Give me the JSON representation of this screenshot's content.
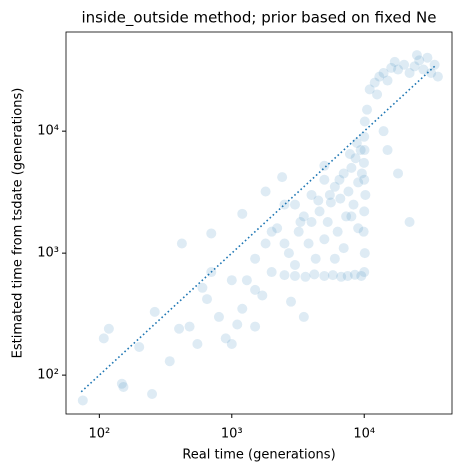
{
  "chart_data": {
    "type": "scatter",
    "title": "inside_outside method; prior based on fixed Ne",
    "x_label": "Real time (generations)",
    "y_label": "Estimated time from tsdate (generations)",
    "log_x": true,
    "log_y": true,
    "color": "#1f77b4",
    "opacity": 0.15,
    "xlim": [
      56,
      46000
    ],
    "ylim": [
      48,
      65000
    ],
    "xticks": [
      {
        "value": 100,
        "label": "10²"
      },
      {
        "value": 1000,
        "label": "10³"
      },
      {
        "value": 10000,
        "label": "10⁴"
      }
    ],
    "yticks": [
      {
        "value": 100,
        "label": "10²"
      },
      {
        "value": 1000,
        "label": "10³"
      },
      {
        "value": 10000,
        "label": "10⁴"
      }
    ],
    "reference_line": {
      "x": [
        73,
        35000
      ],
      "y": [
        73,
        35000
      ]
    },
    "x": [
      75,
      118,
      108,
      148,
      152,
      250,
      262,
      200,
      340,
      400,
      480,
      600,
      700,
      420,
      550,
      800,
      900,
      650,
      1000,
      1100,
      1200,
      1300,
      1500,
      1700,
      1800,
      2000,
      2200,
      2500,
      2700,
      3000,
      3200,
      3500,
      3800,
      4000,
      4300,
      4600,
      5000,
      5300,
      5600,
      6000,
      6300,
      6600,
      7000,
      7300,
      7600,
      8000,
      8300,
      8600,
      9000,
      9400,
      10000,
      10100,
      9900,
      10000,
      10200,
      10000,
      9950,
      10050,
      10000,
      10100,
      2500,
      3000,
      3600,
      4200,
      5000,
      5800,
      6700,
      7500,
      8500,
      9500,
      10500,
      11000,
      12000,
      13000,
      14000,
      15000,
      16000,
      18000,
      20000,
      22000,
      24000,
      26000,
      28000,
      30000,
      32000,
      34000,
      36000,
      12500,
      17000,
      25000,
      22000,
      18000,
      15000,
      14000,
      2400,
      3500,
      1500,
      5000,
      1800,
      1200,
      2000,
      2500,
      3000,
      4000,
      5000,
      6000,
      7000,
      8000,
      9000,
      1000,
      1500,
      2800,
      3300,
      4500,
      5500,
      6500,
      7800,
      8800,
      9600,
      700
    ],
    "y": [
      62,
      240,
      200,
      85,
      80,
      70,
      330,
      170,
      130,
      240,
      250,
      520,
      1450,
      1200,
      180,
      300,
      200,
      420,
      180,
      260,
      350,
      600,
      900,
      450,
      1200,
      700,
      1600,
      2500,
      1000,
      800,
      1500,
      2000,
      1200,
      3000,
      900,
      2200,
      4000,
      1800,
      2600,
      3500,
      1500,
      2800,
      4500,
      2000,
      3200,
      5000,
      2500,
      6000,
      3800,
      7000,
      700,
      1000,
      1500,
      2200,
      3000,
      4000,
      5500,
      7000,
      9000,
      12000,
      660,
      650,
      640,
      670,
      650,
      660,
      640,
      650,
      665,
      650,
      15000,
      22000,
      25000,
      28000,
      30000,
      26000,
      33000,
      32000,
      35000,
      30000,
      34000,
      38000,
      32000,
      40000,
      30000,
      35000,
      28000,
      20000,
      37000,
      42000,
      1800,
      4500,
      7000,
      10000,
      4200,
      300,
      250,
      5200,
      3200,
      2100,
      1500,
      1200,
      2500,
      1800,
      1300,
      900,
      1100,
      2000,
      1600,
      600,
      500,
      400,
      1800,
      2700,
      3000,
      4000,
      6500,
      8000,
      4500,
      700
    ]
  }
}
